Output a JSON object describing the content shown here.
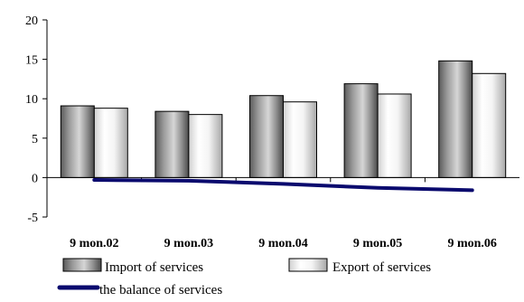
{
  "chart_data": {
    "type": "bar",
    "title": "",
    "xlabel": "",
    "ylabel": "",
    "categories": [
      "9 mon.02",
      "9 mon.03",
      "9 mon.04",
      "9 mon.05",
      "9 mon.06"
    ],
    "series": [
      {
        "name": "Import of services",
        "type": "bar",
        "style": "dark-gradient",
        "values": [
          9.1,
          8.4,
          10.4,
          11.9,
          14.8
        ]
      },
      {
        "name": "Export of services",
        "type": "bar",
        "style": "light-gradient",
        "values": [
          8.8,
          8.0,
          9.6,
          10.6,
          13.2
        ]
      },
      {
        "name": "the balance of services",
        "type": "line",
        "color": "#0a0a6e",
        "values": [
          -0.3,
          -0.4,
          -0.8,
          -1.3,
          -1.6
        ]
      }
    ],
    "ylim": [
      -5,
      20
    ],
    "yticks": [
      -5,
      0,
      5,
      10,
      15,
      20
    ],
    "grid": false,
    "legend_position": "bottom"
  }
}
